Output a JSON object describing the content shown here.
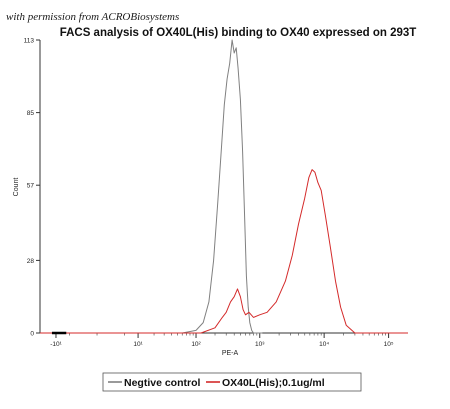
{
  "watermark": "with permission from ACROBiosystems",
  "chart_data": {
    "type": "line",
    "title": "FACS analysis of OX40L(His) binding to OX40 expressed on 293T",
    "xlabel": "PE-A",
    "ylabel": "Count",
    "x_scale": "log",
    "xlim": [
      -20,
      200000
    ],
    "ylim": [
      0,
      113
    ],
    "y_ticks": [
      0,
      28,
      57,
      85,
      113
    ],
    "y_tick_labels": [
      "0",
      "28",
      "57",
      "85",
      "113"
    ],
    "x_ticks": [
      -10,
      10,
      100,
      1000,
      10000,
      100000
    ],
    "x_tick_labels": [
      "-10¹",
      "10¹",
      "10²",
      "10³",
      "10⁴",
      "10⁵"
    ],
    "grid": false,
    "legend_position": "bottom",
    "series": [
      {
        "name": "Negtive control",
        "color": "#808080",
        "x": [
          -20,
          60,
          100,
          130,
          160,
          190,
          220,
          250,
          280,
          310,
          340,
          370,
          400,
          430,
          460,
          500,
          540,
          580,
          620,
          660,
          700,
          750,
          800,
          900,
          1100
        ],
        "y": [
          0,
          0,
          1,
          4,
          12,
          28,
          50,
          70,
          88,
          98,
          104,
          113,
          108,
          110,
          102,
          90,
          70,
          45,
          22,
          10,
          4,
          1,
          0,
          0,
          0
        ]
      },
      {
        "name": "OX40L(His);0.1ug/ml",
        "color": "#d42a2a",
        "x": [
          -20,
          120,
          200,
          260,
          300,
          350,
          400,
          450,
          500,
          550,
          600,
          680,
          800,
          1000,
          1300,
          1800,
          2500,
          3200,
          4000,
          5000,
          5800,
          6500,
          7200,
          8000,
          9000,
          10500,
          12500,
          15000,
          18000,
          22000,
          30000,
          200000
        ],
        "y": [
          0,
          0,
          2,
          6,
          8,
          12,
          14,
          17,
          14,
          9,
          7,
          8,
          6,
          7,
          8,
          12,
          20,
          30,
          42,
          52,
          60,
          63,
          62,
          58,
          55,
          45,
          33,
          20,
          10,
          3,
          0,
          0
        ]
      }
    ]
  }
}
